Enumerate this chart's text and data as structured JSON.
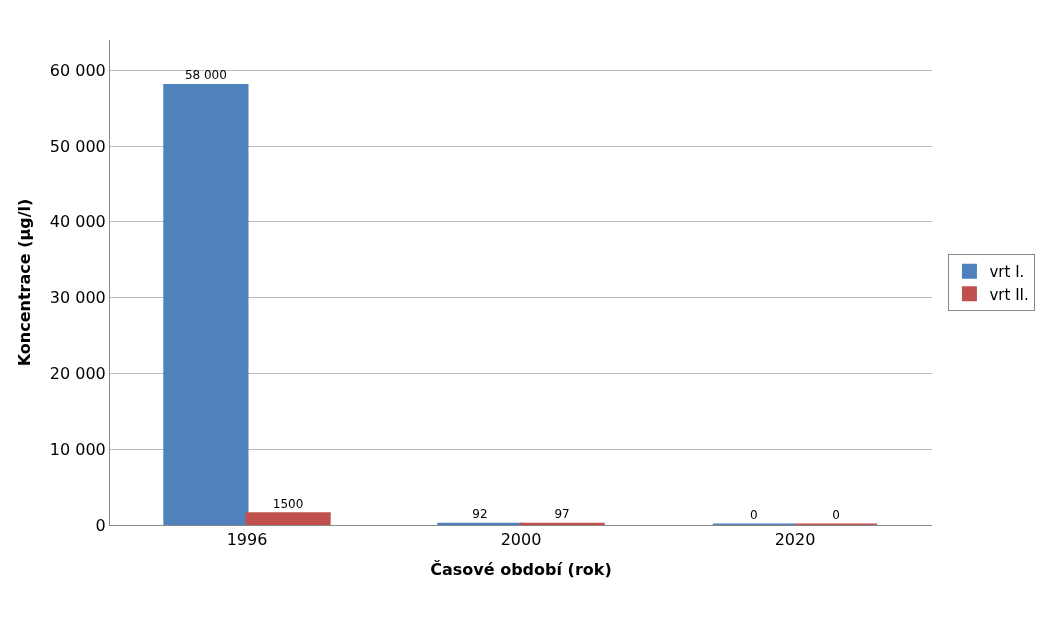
{
  "chart_data": {
    "type": "bar",
    "xlabel": "Časové období (rok)",
    "ylabel": "Koncentrace (µg/l)",
    "categories": [
      "1996",
      "2000",
      "2020"
    ],
    "series": [
      {
        "name": "vrt I.",
        "color": "#4f81bd",
        "values": [
          58000,
          92,
          0
        ],
        "value_labels": [
          "58 000",
          "92",
          "0"
        ]
      },
      {
        "name": "vrt II.",
        "color": "#c0504d",
        "values": [
          1500,
          97,
          0
        ],
        "value_labels": [
          "1500",
          "97",
          "0"
        ]
      }
    ],
    "ylim": [
      0,
      64000
    ],
    "yticks": [
      0,
      {
        "value": 10000,
        "label": "10 000"
      },
      {
        "value": 20000,
        "label": "20 000"
      },
      {
        "value": 30000,
        "label": "30 000"
      },
      {
        "value": 40000,
        "label": "40 000"
      },
      {
        "value": 50000,
        "label": "50 000"
      },
      {
        "value": 60000,
        "label": "60 000"
      }
    ],
    "grid": "y",
    "legend": "right"
  }
}
